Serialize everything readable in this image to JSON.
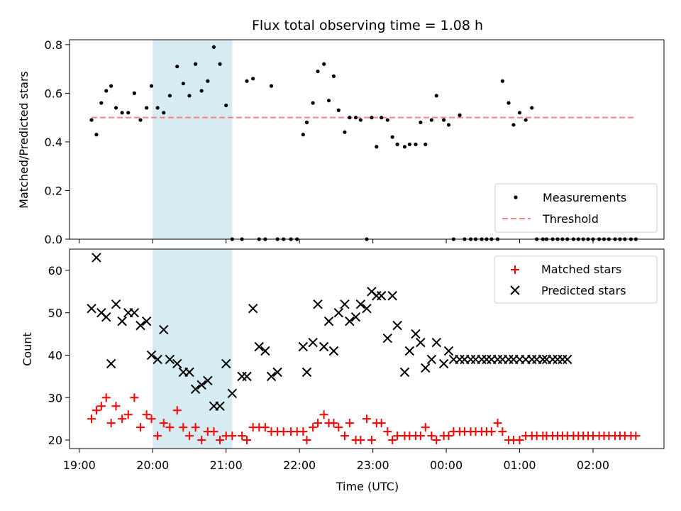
{
  "colors": {
    "measurements": "#000000",
    "threshold": "#ff8080",
    "matched": "#ff0000",
    "predicted": "#000000",
    "highlight": "#add8e6"
  },
  "chart_data": [
    {
      "type": "scatter",
      "title": "Flux total observing time = 1.08 h",
      "xlabel": "",
      "ylabel": "Matched/Predicted stars",
      "xlim": [
        "18:52",
        "02:58"
      ],
      "ylim": [
        0,
        0.82
      ],
      "yticks": [
        0.0,
        0.2,
        0.4,
        0.6,
        0.8
      ],
      "ytick_labels": [
        "0.0",
        "0.2",
        "0.4",
        "0.6",
        "0.8"
      ],
      "highlight_span": [
        "20:00",
        "21:05"
      ],
      "legend": {
        "placement": "lower-right",
        "entries": [
          "Measurements",
          "Threshold"
        ]
      },
      "threshold": {
        "name": "Threshold",
        "value": 0.5,
        "x": [
          "19:10",
          "02:35"
        ]
      },
      "series": [
        {
          "name": "Measurements",
          "x": [
            "19:10",
            "19:14",
            "19:18",
            "19:22",
            "19:26",
            "19:30",
            "19:35",
            "19:40",
            "19:45",
            "19:50",
            "19:55",
            "19:59",
            "20:04",
            "20:09",
            "20:14",
            "20:20",
            "20:25",
            "20:30",
            "20:35",
            "20:40",
            "20:45",
            "20:50",
            "20:55",
            "21:00",
            "21:05",
            "21:13",
            "21:17",
            "21:22",
            "21:27",
            "21:32",
            "21:37",
            "21:42",
            "21:47",
            "21:53",
            "21:58",
            "22:03",
            "22:06",
            "22:11",
            "22:15",
            "22:20",
            "22:24",
            "22:28",
            "22:32",
            "22:37",
            "22:41",
            "22:46",
            "22:50",
            "22:55",
            "22:59",
            "23:03",
            "23:07",
            "23:12",
            "23:16",
            "23:20",
            "23:26",
            "23:30",
            "23:35",
            "23:39",
            "23:43",
            "23:48",
            "23:52",
            "23:58",
            "00:02",
            "00:06",
            "00:11",
            "00:15",
            "00:20",
            "00:24",
            "00:29",
            "00:33",
            "00:37",
            "00:42",
            "00:46",
            "00:51",
            "00:55",
            "01:00",
            "01:05",
            "01:10",
            "01:14",
            "01:19",
            "01:22",
            "01:27",
            "01:31",
            "01:35",
            "01:39",
            "01:44",
            "01:48",
            "01:52",
            "01:56",
            "02:00",
            "02:05",
            "02:09",
            "02:13",
            "02:18",
            "02:22",
            "02:26",
            "02:31",
            "02:35"
          ],
          "y": [
            0.49,
            0.43,
            0.56,
            0.61,
            0.63,
            0.54,
            0.52,
            0.52,
            0.6,
            0.49,
            0.54,
            0.63,
            0.54,
            0.52,
            0.59,
            0.71,
            0.64,
            0.59,
            0.72,
            0.61,
            0.65,
            0.79,
            0.72,
            0.55,
            0,
            0,
            0.65,
            0.66,
            0,
            0,
            0.63,
            0,
            0,
            0,
            0,
            0.43,
            0.48,
            0.56,
            0.69,
            0.72,
            0.57,
            0.67,
            0.53,
            0.44,
            0.5,
            0.5,
            0.49,
            0,
            0.5,
            0.38,
            0.5,
            0.49,
            0.42,
            0.39,
            0.38,
            0.39,
            0.39,
            0.48,
            0.39,
            0.49,
            0.59,
            0.49,
            0.47,
            0,
            0.51,
            0,
            0,
            0,
            0,
            0,
            0,
            0,
            0.65,
            0.56,
            0.47,
            0.52,
            0.49,
            0.54,
            0,
            0,
            0,
            0,
            0,
            0,
            0,
            0,
            0,
            0,
            0,
            0,
            0,
            0,
            0,
            0,
            0,
            0,
            0,
            0
          ]
        }
      ]
    },
    {
      "type": "scatter",
      "title": "",
      "xlabel": "Time (UTC)",
      "ylabel": "Count",
      "xlim": [
        "18:52",
        "02:58"
      ],
      "ylim": [
        18,
        65
      ],
      "yticks": [
        20,
        30,
        40,
        50,
        60
      ],
      "ytick_labels": [
        "20",
        "30",
        "40",
        "50",
        "60"
      ],
      "xticks": [
        "19:00",
        "20:00",
        "21:00",
        "22:00",
        "23:00",
        "00:00",
        "01:00",
        "02:00"
      ],
      "xtick_labels": [
        "19:00",
        "20:00",
        "21:00",
        "22:00",
        "23:00",
        "00:00",
        "01:00",
        "02:00"
      ],
      "highlight_span": [
        "20:00",
        "21:05"
      ],
      "legend": {
        "placement": "top-right",
        "entries": [
          "Matched stars",
          "Predicted stars"
        ]
      },
      "series": [
        {
          "name": "Matched stars",
          "x": [
            "19:10",
            "19:14",
            "19:18",
            "19:22",
            "19:26",
            "19:30",
            "19:35",
            "19:40",
            "19:45",
            "19:50",
            "19:55",
            "19:59",
            "20:04",
            "20:09",
            "20:14",
            "20:20",
            "20:25",
            "20:30",
            "20:35",
            "20:40",
            "20:45",
            "20:50",
            "20:55",
            "21:00",
            "21:05",
            "21:13",
            "21:17",
            "21:22",
            "21:27",
            "21:32",
            "21:37",
            "21:42",
            "21:47",
            "21:53",
            "21:58",
            "22:03",
            "22:06",
            "22:11",
            "22:15",
            "22:20",
            "22:24",
            "22:28",
            "22:32",
            "22:37",
            "22:41",
            "22:46",
            "22:50",
            "22:55",
            "22:59",
            "23:03",
            "23:07",
            "23:12",
            "23:16",
            "23:20",
            "23:26",
            "23:30",
            "23:35",
            "23:39",
            "23:43",
            "23:48",
            "23:52",
            "23:58",
            "00:02",
            "00:06",
            "00:11",
            "00:15",
            "00:20",
            "00:24",
            "00:29",
            "00:33",
            "00:37",
            "00:42",
            "00:46",
            "00:51",
            "00:55",
            "01:00",
            "01:05",
            "01:10",
            "01:14",
            "01:19",
            "01:22",
            "01:27",
            "01:31",
            "01:35",
            "01:39",
            "01:44",
            "01:48",
            "01:52",
            "01:56",
            "02:00",
            "02:05",
            "02:09",
            "02:13",
            "02:18",
            "02:22",
            "02:26",
            "02:31",
            "02:35"
          ],
          "y": [
            25,
            27,
            28,
            30,
            24,
            28,
            25,
            26,
            30,
            23,
            26,
            25,
            21,
            24,
            23,
            27,
            23,
            21,
            23,
            20,
            22,
            22,
            20,
            21,
            21,
            21,
            20,
            23,
            23,
            23,
            22,
            22,
            22,
            22,
            22,
            22,
            20,
            23,
            24,
            26,
            24,
            24,
            23,
            21,
            24,
            20,
            20,
            25,
            20,
            24,
            24,
            22,
            20,
            21,
            21,
            21,
            21,
            21,
            23,
            21,
            20,
            21,
            21,
            22,
            22,
            22,
            22,
            22,
            22,
            22,
            22,
            24,
            22,
            20,
            20,
            20,
            21,
            21,
            21,
            21,
            21,
            21,
            21,
            21,
            21,
            21,
            21,
            21,
            21,
            21,
            21,
            21,
            21,
            21,
            21,
            21,
            21,
            21
          ]
        },
        {
          "name": "Predicted stars",
          "x": [
            "19:10",
            "19:14",
            "19:18",
            "19:22",
            "19:26",
            "19:30",
            "19:35",
            "19:40",
            "19:45",
            "19:50",
            "19:55",
            "19:59",
            "20:04",
            "20:09",
            "20:14",
            "20:20",
            "20:25",
            "20:30",
            "20:35",
            "20:40",
            "20:45",
            "20:50",
            "20:55",
            "21:00",
            "21:05",
            "21:13",
            "21:17",
            "21:22",
            "21:27",
            "21:32",
            "21:37",
            "21:42",
            "22:03",
            "22:06",
            "22:11",
            "22:15",
            "22:20",
            "22:24",
            "22:28",
            "22:32",
            "22:37",
            "22:41",
            "22:46",
            "22:50",
            "22:55",
            "22:59",
            "23:03",
            "23:07",
            "23:12",
            "23:16",
            "23:20",
            "23:26",
            "23:30",
            "23:35",
            "23:39",
            "23:43",
            "23:48",
            "23:52",
            "23:58",
            "00:02",
            "00:06",
            "00:11",
            "00:15",
            "00:20",
            "00:24",
            "00:29",
            "00:33",
            "00:37",
            "00:42",
            "00:46",
            "00:51",
            "00:55",
            "01:00",
            "01:05",
            "01:10",
            "01:14",
            "01:19",
            "01:22",
            "01:27",
            "01:31",
            "01:35",
            "01:39"
          ],
          "y": [
            51,
            63,
            50,
            49,
            38,
            52,
            48,
            50,
            50,
            47,
            48,
            40,
            39,
            46,
            39,
            38,
            36,
            36,
            32,
            33,
            34,
            28,
            28,
            38,
            31,
            35,
            35,
            51,
            42,
            41,
            35,
            36,
            42,
            36,
            43,
            52,
            42,
            48,
            41,
            50,
            52,
            48,
            49,
            52,
            51,
            55,
            54,
            54,
            44,
            54,
            47,
            36,
            41,
            45,
            43,
            37,
            39,
            43,
            38,
            41,
            39,
            39,
            39,
            39,
            39,
            39,
            39,
            39,
            39,
            39,
            39,
            39,
            39,
            39,
            39,
            39,
            39,
            39,
            39,
            39,
            39,
            39
          ]
        }
      ]
    }
  ]
}
